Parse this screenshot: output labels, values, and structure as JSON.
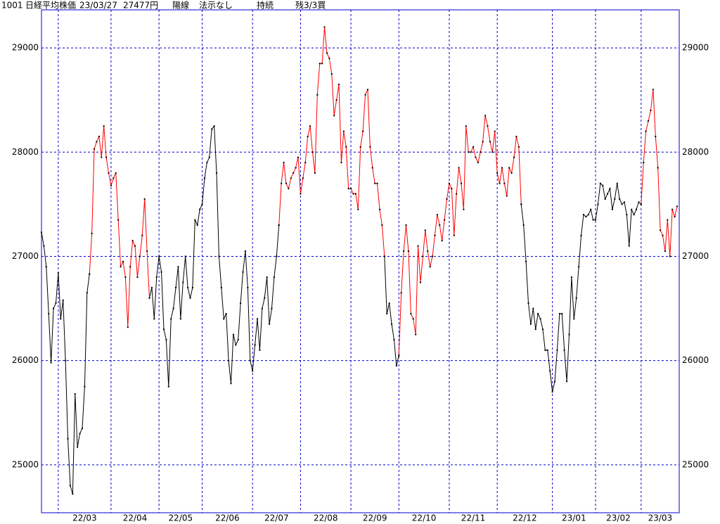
{
  "header": {
    "code": "1001",
    "name": "日経平均株価",
    "date": "23/03/27",
    "price": "27477円",
    "candle": "陽線",
    "method": "法示なし",
    "status": "持続",
    "position": "残3/3買"
  },
  "chart_data": {
    "type": "line",
    "categories": [
      null,
      null,
      null,
      null,
      null,
      null,
      null,
      "22/03",
      null,
      null,
      null,
      null,
      null,
      null,
      null,
      null,
      null,
      null,
      null,
      null,
      null,
      null,
      null,
      null,
      null,
      null,
      null,
      null,
      null,
      "22/04",
      null,
      null,
      null,
      null,
      null,
      null,
      null,
      null,
      null,
      null,
      null,
      null,
      null,
      null,
      null,
      null,
      null,
      null,
      null,
      "22/05",
      null,
      null,
      null,
      null,
      null,
      null,
      null,
      null,
      null,
      null,
      null,
      null,
      null,
      null,
      null,
      null,
      null,
      "22/06",
      null,
      null,
      null,
      null,
      null,
      null,
      null,
      null,
      null,
      null,
      null,
      null,
      null,
      null,
      null,
      null,
      null,
      null,
      null,
      null,
      "22/07",
      null,
      null,
      null,
      null,
      null,
      null,
      null,
      null,
      null,
      null,
      null,
      null,
      null,
      null,
      null,
      null,
      null,
      null,
      null,
      "22/08",
      null,
      null,
      null,
      null,
      null,
      null,
      null,
      null,
      null,
      null,
      null,
      null,
      null,
      null,
      null,
      null,
      null,
      null,
      null,
      null,
      "22/09",
      null,
      null,
      null,
      null,
      null,
      null,
      null,
      null,
      null,
      null,
      null,
      null,
      null,
      null,
      null,
      null,
      null,
      null,
      null,
      "22/10",
      null,
      null,
      null,
      null,
      null,
      null,
      null,
      null,
      null,
      null,
      null,
      null,
      null,
      null,
      null,
      null,
      null,
      null,
      null,
      null,
      "22/11",
      null,
      null,
      null,
      null,
      null,
      null,
      null,
      null,
      null,
      null,
      null,
      null,
      null,
      null,
      null,
      null,
      null,
      null,
      null,
      "22/12",
      null,
      null,
      null,
      null,
      null,
      null,
      null,
      null,
      null,
      null,
      null,
      null,
      null,
      null,
      null,
      null,
      null,
      null,
      null,
      null,
      null,
      null,
      "23/01",
      null,
      null,
      null,
      null,
      null,
      null,
      null,
      null,
      null,
      null,
      null,
      null,
      null,
      null,
      null,
      null,
      null,
      "23/02",
      null,
      null,
      null,
      null,
      null,
      null,
      null,
      null,
      null,
      null,
      null,
      null,
      null,
      null,
      null,
      null,
      null,
      null,
      "23/03",
      null,
      null,
      null,
      null,
      null,
      null,
      null,
      null,
      null,
      null,
      null,
      null,
      null,
      null,
      null
    ],
    "series": [
      {
        "color": "#000000",
        "values": [
          27230,
          27100,
          26900,
          26450,
          25980,
          26500,
          26550,
          26840,
          26400,
          26580,
          26000,
          25250,
          24800,
          24720,
          25680,
          25170,
          25300,
          25350,
          25750,
          26650,
          26830,
          null,
          null,
          null,
          null,
          null,
          null,
          null,
          null,
          null,
          null,
          null,
          null,
          null,
          null,
          null,
          null,
          null,
          null,
          null,
          null,
          null,
          null,
          null,
          null,
          26600,
          26700,
          26400,
          26800,
          27000,
          26850,
          26300,
          26200,
          25750,
          26400,
          26500,
          26700,
          26900,
          26400,
          26750,
          27000,
          26700,
          26600,
          26700,
          27350,
          27300,
          27450,
          27500,
          27750,
          27900,
          27950,
          28220,
          28250,
          27800,
          27000,
          26700,
          26400,
          26450,
          26000,
          25780,
          26250,
          26150,
          26200,
          26550,
          26850,
          27050,
          26700,
          26000,
          25900,
          26150,
          26400,
          26100,
          26500,
          26600,
          26800,
          26350,
          26500,
          26800,
          27000,
          27300,
          null,
          null,
          null,
          null,
          null,
          null,
          null,
          null,
          null,
          null,
          null,
          null,
          null,
          null,
          null,
          null,
          null,
          null,
          null,
          null,
          null,
          null,
          null,
          null,
          null,
          null,
          null,
          null,
          null,
          null,
          null,
          null,
          null,
          null,
          null,
          null,
          null,
          null,
          null,
          null,
          null,
          null,
          null,
          27000,
          26450,
          26550,
          26350,
          26200,
          25950,
          26050,
          null,
          null,
          null,
          null,
          null,
          null,
          null,
          null,
          null,
          null,
          null,
          null,
          null,
          null,
          null,
          null,
          null,
          null,
          null,
          null,
          null,
          null,
          null,
          null,
          null,
          null,
          null,
          null,
          null,
          null,
          null,
          null,
          null,
          null,
          null,
          null,
          null,
          null,
          null,
          null,
          null,
          null,
          null,
          null,
          null,
          null,
          null,
          null,
          null,
          null,
          27500,
          27300,
          26950,
          26550,
          26350,
          26500,
          26300,
          26450,
          26400,
          26300,
          26100,
          26100,
          25900,
          25700,
          25800,
          26100,
          26450,
          26450,
          26100,
          25800,
          26250,
          26800,
          26400,
          26600,
          26900,
          27200,
          27400,
          27380,
          27400,
          27450,
          27350,
          27350,
          27500,
          27700,
          27680,
          27550,
          27600,
          27650,
          27450,
          27550,
          27700,
          27550,
          27500,
          27520,
          27400,
          27100,
          27450,
          27400,
          27450,
          27520,
          27500,
          null,
          null,
          null,
          null,
          null,
          null,
          null,
          null,
          null,
          null,
          null,
          null,
          null,
          null,
          null
        ]
      },
      {
        "color": "#ff0000",
        "values": [
          null,
          null,
          null,
          null,
          null,
          null,
          null,
          null,
          null,
          null,
          null,
          null,
          null,
          null,
          null,
          null,
          null,
          null,
          null,
          null,
          26830,
          27220,
          28030,
          28100,
          28150,
          27950,
          28250,
          27950,
          27800,
          27680,
          27750,
          27800,
          27350,
          26900,
          26950,
          26800,
          26320,
          26900,
          27150,
          27100,
          26800,
          27000,
          27200,
          27550,
          27050,
          26600,
          null,
          null,
          null,
          null,
          null,
          null,
          null,
          null,
          null,
          null,
          null,
          null,
          null,
          null,
          null,
          null,
          null,
          null,
          null,
          null,
          null,
          null,
          null,
          null,
          null,
          null,
          null,
          null,
          null,
          null,
          null,
          null,
          null,
          null,
          null,
          null,
          null,
          null,
          null,
          null,
          null,
          null,
          null,
          null,
          null,
          null,
          null,
          null,
          null,
          null,
          null,
          null,
          null,
          27300,
          27700,
          27900,
          27700,
          27650,
          27750,
          27800,
          27850,
          27950,
          27600,
          27750,
          27900,
          28150,
          28250,
          28000,
          27800,
          28550,
          28850,
          28850,
          29200,
          28950,
          28900,
          28750,
          28350,
          28500,
          28650,
          27900,
          28200,
          28050,
          27650,
          27650,
          27600,
          27600,
          27450,
          28050,
          28200,
          28550,
          28600,
          28050,
          27850,
          27700,
          27700,
          27450,
          27300,
          27000,
          null,
          null,
          null,
          null,
          null,
          26050,
          26650,
          27050,
          27300,
          27050,
          26450,
          26400,
          26250,
          27100,
          26750,
          27000,
          27250,
          27050,
          26900,
          27000,
          27200,
          27400,
          27300,
          27150,
          27350,
          27550,
          27700,
          27650,
          27200,
          27600,
          27850,
          27700,
          27450,
          28250,
          28000,
          28000,
          28050,
          27950,
          27900,
          28000,
          28100,
          28350,
          28250,
          28100,
          28000,
          28200,
          27800,
          27700,
          27850,
          27700,
          27580,
          27850,
          27800,
          27950,
          28150,
          28050,
          27500,
          null,
          null,
          null,
          null,
          null,
          null,
          null,
          null,
          null,
          null,
          null,
          null,
          null,
          null,
          null,
          null,
          null,
          null,
          null,
          null,
          null,
          null,
          null,
          null,
          null,
          null,
          null,
          null,
          null,
          null,
          null,
          null,
          null,
          null,
          null,
          null,
          null,
          null,
          null,
          null,
          null,
          null,
          null,
          null,
          null,
          null,
          null,
          null,
          null,
          27500,
          27900,
          28200,
          28300,
          28400,
          28600,
          28150,
          27850,
          27250,
          27200,
          27050,
          27350,
          27000,
          27450,
          27380,
          27480
        ]
      }
    ],
    "ylim": [
      24540,
      29365
    ],
    "yticks": [
      25000,
      26000,
      27000,
      28000,
      29000
    ],
    "grid": true
  }
}
